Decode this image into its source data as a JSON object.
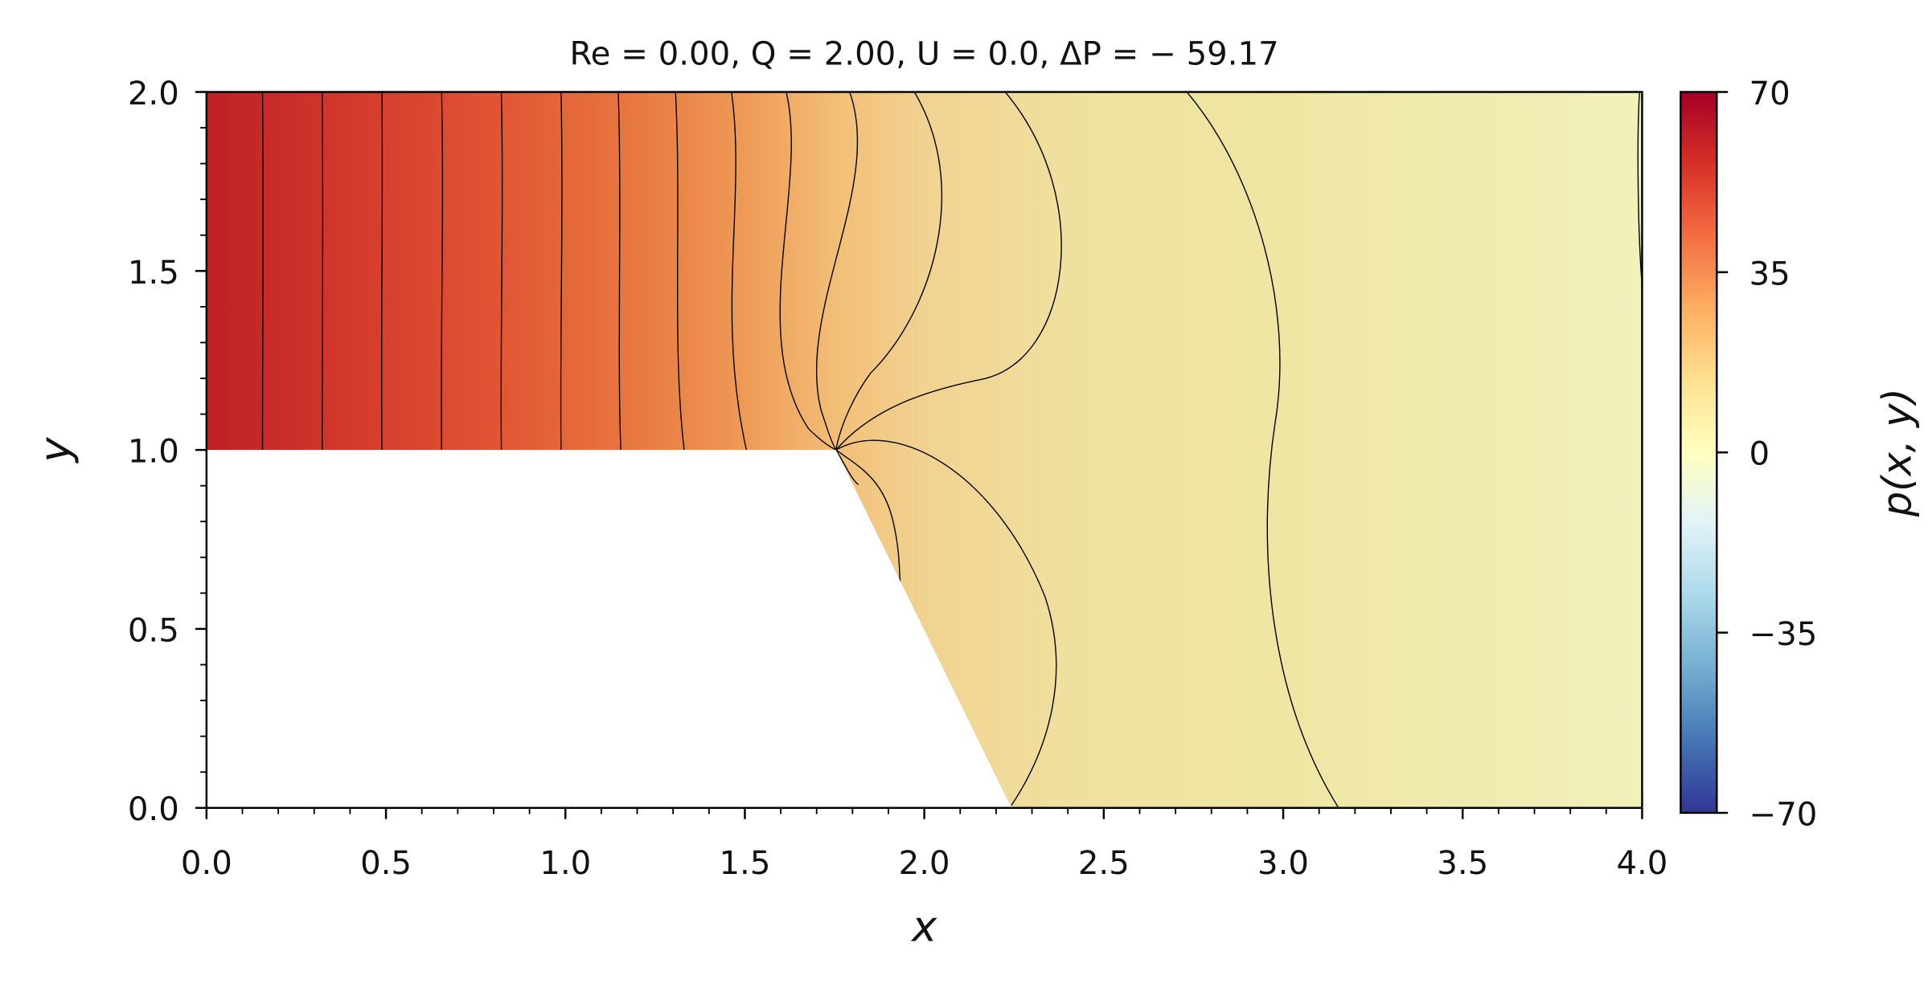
{
  "chart_data": {
    "type": "heatmap",
    "title": "Re = 0.00, Q = 2.00, U = 0.0, ΔP = − 59.17",
    "xlabel": "x",
    "ylabel": "y",
    "xlim": [
      0.0,
      4.0
    ],
    "ylim": [
      0.0,
      2.0
    ],
    "x_ticks": [
      "0.0",
      "0.5",
      "1.0",
      "1.5",
      "2.0",
      "2.5",
      "3.0",
      "3.5",
      "4.0"
    ],
    "y_ticks": [
      "0.0",
      "0.5",
      "1.0",
      "1.5",
      "2.0"
    ],
    "colorbar": {
      "label": "p(x, y)",
      "ticks": [
        "70",
        "35",
        "0",
        "−35",
        "−70"
      ],
      "vmin": -70,
      "vmax": 70,
      "colormap": [
        "#313695",
        "#4575b4",
        "#74add1",
        "#abd9e9",
        "#e0f3f8",
        "#ffffbf",
        "#fee090",
        "#fdae61",
        "#f46d43",
        "#d73027",
        "#a50026"
      ]
    },
    "domain": {
      "step_corner": [
        1.75,
        1.0
      ],
      "slope_bottom": [
        2.25,
        0.0
      ],
      "inlet_height_region": "y from 1.0 to 2.0 for x < 1.75"
    },
    "pressure_profile": {
      "x": [
        0.0,
        0.25,
        0.5,
        0.75,
        1.0,
        1.25,
        1.5,
        1.75,
        2.0,
        2.5,
        3.0,
        3.5,
        4.0
      ],
      "p": [
        60.0,
        55.0,
        49.0,
        43.0,
        37.0,
        31.0,
        25.0,
        18.0,
        13.0,
        9.0,
        7.0,
        4.0,
        2.0
      ]
    },
    "contour_lines": {
      "upper_region_x": [
        0.15,
        0.32,
        0.49,
        0.66,
        0.82,
        0.98,
        1.15,
        1.32,
        1.5
      ],
      "downstream_x": [
        2.24,
        3.15
      ]
    }
  },
  "colors": {
    "contour": "#000000",
    "axis": "#000000",
    "background": "#ffffff"
  }
}
